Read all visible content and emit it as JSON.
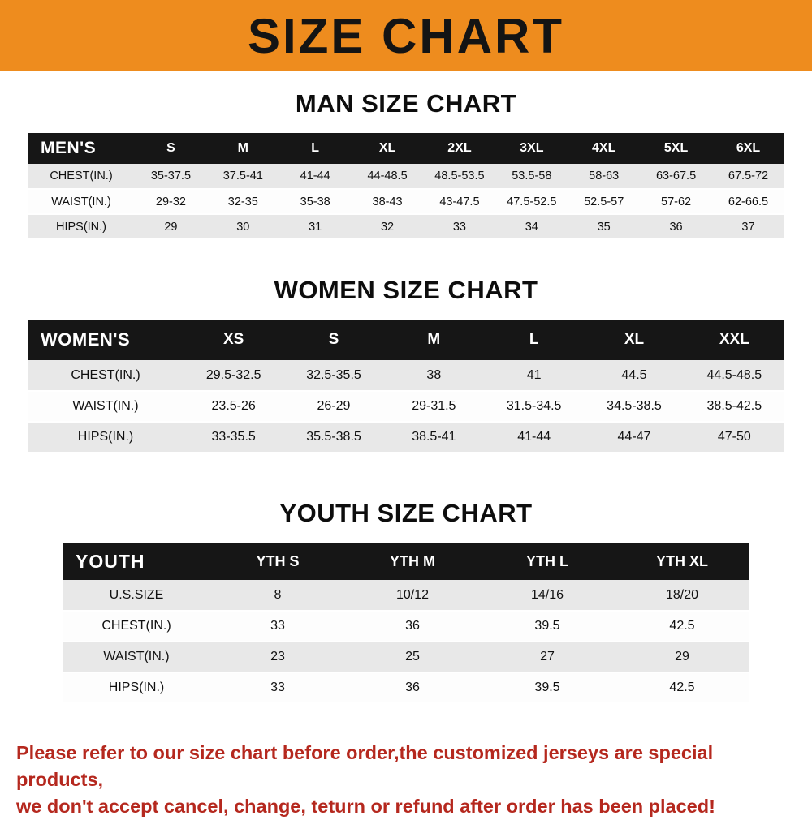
{
  "banner": {
    "title": "SIZE CHART"
  },
  "colors": {
    "banner_bg": "#ee8c1e",
    "table_header_bg": "#161616",
    "row_alt_bg": "#e8e8e8",
    "note_text": "#b5281e"
  },
  "chart_data": [
    {
      "type": "table",
      "title": "MAN SIZE CHART",
      "header": [
        "MEN'S",
        "S",
        "M",
        "L",
        "XL",
        "2XL",
        "3XL",
        "4XL",
        "5XL",
        "6XL"
      ],
      "rows": [
        [
          "CHEST(IN.)",
          "35-37.5",
          "37.5-41",
          "41-44",
          "44-48.5",
          "48.5-53.5",
          "53.5-58",
          "58-63",
          "63-67.5",
          "67.5-72"
        ],
        [
          "WAIST(IN.)",
          "29-32",
          "32-35",
          "35-38",
          "38-43",
          "43-47.5",
          "47.5-52.5",
          "52.5-57",
          "57-62",
          "62-66.5"
        ],
        [
          "HIPS(IN.)",
          "29",
          "30",
          "31",
          "32",
          "33",
          "34",
          "35",
          "36",
          "37"
        ]
      ]
    },
    {
      "type": "table",
      "title": "WOMEN SIZE CHART",
      "header": [
        "WOMEN'S",
        "XS",
        "S",
        "M",
        "L",
        "XL",
        "XXL"
      ],
      "rows": [
        [
          "CHEST(IN.)",
          "29.5-32.5",
          "32.5-35.5",
          "38",
          "41",
          "44.5",
          "44.5-48.5"
        ],
        [
          "WAIST(IN.)",
          "23.5-26",
          "26-29",
          "29-31.5",
          "31.5-34.5",
          "34.5-38.5",
          "38.5-42.5"
        ],
        [
          "HIPS(IN.)",
          "33-35.5",
          "35.5-38.5",
          "38.5-41",
          "41-44",
          "44-47",
          "47-50"
        ]
      ]
    },
    {
      "type": "table",
      "title": "YOUTH SIZE CHART",
      "header": [
        "YOUTH",
        "YTH S",
        "YTH M",
        "YTH L",
        "YTH XL"
      ],
      "rows": [
        [
          "U.S.SIZE",
          "8",
          "10/12",
          "14/16",
          "18/20"
        ],
        [
          "CHEST(IN.)",
          "33",
          "36",
          "39.5",
          "42.5"
        ],
        [
          "WAIST(IN.)",
          "23",
          "25",
          "27",
          "29"
        ],
        [
          "HIPS(IN.)",
          "33",
          "36",
          "39.5",
          "42.5"
        ]
      ]
    }
  ],
  "footer": {
    "lines": [
      "Please refer to our size chart before order,the customized jerseys are special products,",
      "we don't accept cancel, change, teturn or refund after order has been placed!"
    ]
  }
}
